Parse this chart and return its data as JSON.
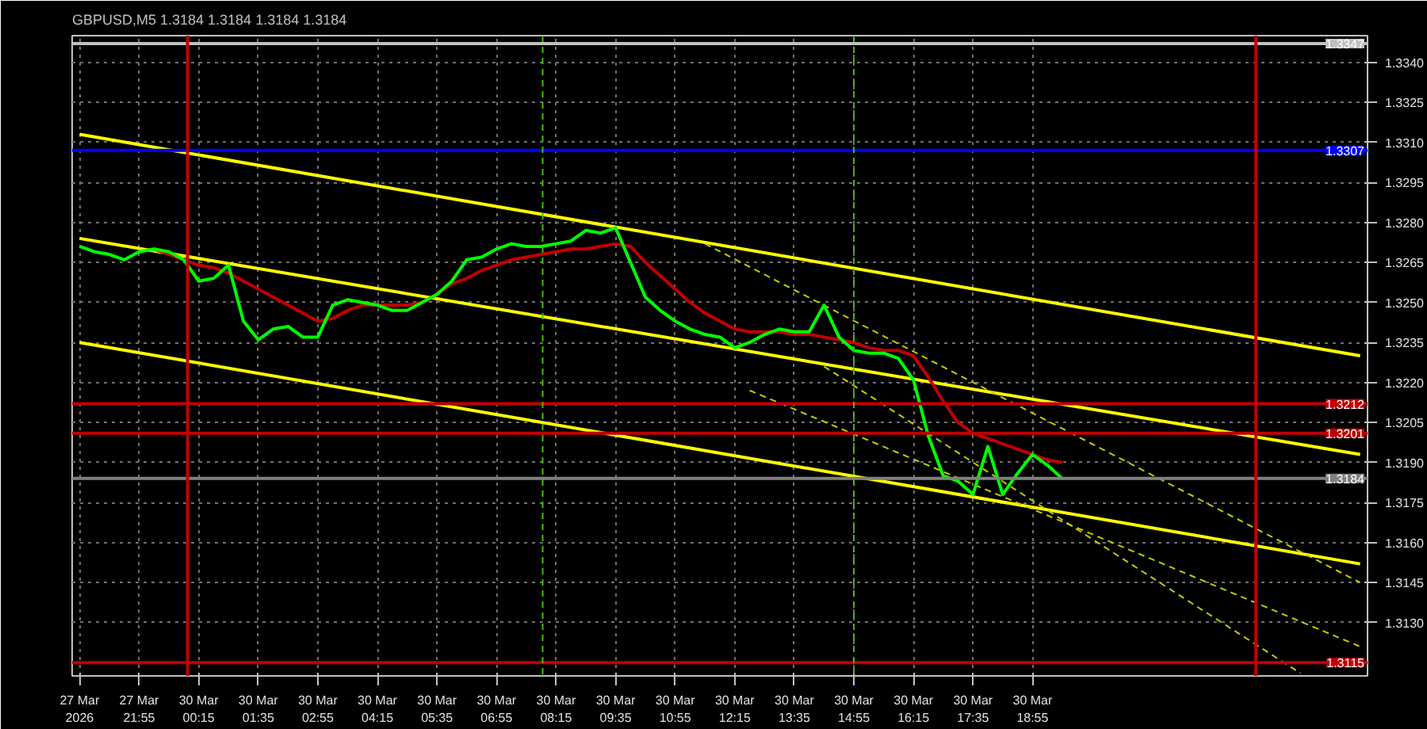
{
  "chart_data": {
    "type": "line",
    "title": "GBPUSD,M5  1.3184 1.3184 1.3184 1.3184",
    "ylim": [
      1.311,
      1.335
    ],
    "categories": [
      "27 Mar 2026",
      null,
      null,
      null,
      "27 Mar 21:55",
      null,
      null,
      null,
      "30 Mar 00:15",
      null,
      null,
      null,
      "30 Mar 01:35",
      null,
      null,
      null,
      "30 Mar 02:55",
      null,
      null,
      null,
      "30 Mar 04:15",
      null,
      null,
      null,
      "30 Mar 05:35",
      null,
      null,
      null,
      "30 Mar 06:55",
      null,
      null,
      null,
      "30 Mar 08:15",
      null,
      null,
      null,
      "30 Mar 09:35",
      null,
      null,
      null,
      "30 Mar 10:55",
      null,
      null,
      null,
      "30 Mar 12:15",
      null,
      null,
      null,
      "30 Mar 13:35",
      null,
      null,
      null,
      "30 Mar 14:55",
      null,
      null,
      null,
      "30 Mar 16:15",
      null,
      null,
      null,
      "30 Mar 17:35",
      null,
      null,
      null,
      "30 Mar 18:55",
      null,
      null,
      null,
      null,
      null,
      null,
      null,
      null,
      null,
      null,
      null,
      null,
      null,
      null,
      null,
      null,
      null,
      null,
      null,
      null,
      null,
      null
    ],
    "yticks": [
      {
        "value": 1.334,
        "label": "1.3340"
      },
      1.3325,
      {
        "value": 1.331,
        "label": "1.3310"
      },
      1.3295,
      {
        "value": 1.328,
        "label": "1.3280"
      },
      1.3265,
      {
        "value": 1.325,
        "label": "1.3250"
      },
      1.3235,
      {
        "value": 1.322,
        "label": "1.3220"
      },
      1.3205,
      {
        "value": 1.319,
        "label": "1.3190"
      },
      1.3175,
      {
        "value": 1.316,
        "label": "1.3160"
      },
      1.3145,
      {
        "value": 1.313,
        "label": "1.3130"
      }
    ],
    "grid": true,
    "series": [
      {
        "color": "#ffff00",
        "values": [
          1.3313,
          null,
          null,
          null,
          null,
          null,
          null,
          null,
          null,
          null,
          null,
          null,
          null,
          null,
          null,
          null,
          null,
          null,
          null,
          null,
          null,
          null,
          null,
          null,
          null,
          null,
          null,
          null,
          null,
          null,
          null,
          null,
          null,
          null,
          null,
          null,
          null,
          null,
          null,
          null,
          null,
          null,
          null,
          null,
          null,
          null,
          null,
          null,
          null,
          null,
          null,
          null,
          null,
          null,
          null,
          null,
          null,
          null,
          null,
          null,
          null,
          null,
          null,
          null,
          null,
          null,
          null,
          null,
          null,
          null,
          null,
          null,
          null,
          null,
          null,
          null,
          null,
          null,
          null,
          null,
          null,
          null,
          null,
          null,
          null,
          null,
          1.323
        ]
      },
      {
        "color": "#ffff00",
        "values": [
          1.3274,
          null,
          null,
          null,
          null,
          null,
          null,
          null,
          null,
          null,
          null,
          null,
          null,
          null,
          null,
          null,
          null,
          null,
          null,
          null,
          null,
          null,
          null,
          null,
          null,
          null,
          null,
          null,
          null,
          null,
          null,
          null,
          null,
          null,
          null,
          null,
          null,
          null,
          null,
          null,
          null,
          null,
          null,
          null,
          null,
          null,
          null,
          null,
          null,
          null,
          null,
          null,
          null,
          null,
          null,
          null,
          null,
          null,
          null,
          null,
          null,
          null,
          null,
          null,
          null,
          null,
          null,
          null,
          null,
          null,
          null,
          null,
          null,
          null,
          null,
          null,
          null,
          null,
          null,
          null,
          null,
          null,
          null,
          null,
          null,
          null,
          1.3193
        ]
      },
      {
        "color": "#ffff00",
        "values": [
          1.3235,
          null,
          null,
          null,
          null,
          null,
          null,
          null,
          null,
          null,
          null,
          null,
          null,
          null,
          null,
          null,
          null,
          null,
          null,
          null,
          null,
          null,
          null,
          null,
          null,
          null,
          null,
          null,
          null,
          null,
          null,
          null,
          null,
          null,
          null,
          null,
          null,
          null,
          null,
          null,
          null,
          null,
          null,
          null,
          null,
          null,
          null,
          null,
          null,
          null,
          null,
          null,
          null,
          null,
          null,
          null,
          null,
          null,
          null,
          null,
          null,
          null,
          null,
          null,
          null,
          null,
          null,
          null,
          null,
          null,
          null,
          null,
          null,
          null,
          null,
          null,
          null,
          null,
          null,
          null,
          null,
          null,
          null,
          null,
          null,
          null,
          1.3152
        ]
      },
      {
        "color": "#c8c800",
        "line_style": "dashed",
        "values": [
          null,
          null,
          null,
          null,
          null,
          null,
          null,
          null,
          null,
          null,
          null,
          null,
          null,
          null,
          null,
          null,
          null,
          null,
          null,
          null,
          null,
          null,
          null,
          null,
          null,
          null,
          null,
          null,
          null,
          null,
          null,
          null,
          null,
          null,
          null,
          null,
          null,
          null,
          null,
          null,
          null,
          null,
          1.3272,
          null,
          null,
          null,
          null,
          null,
          null,
          null,
          null,
          null,
          null,
          null,
          null,
          null,
          null,
          null,
          null,
          null,
          null,
          null,
          null,
          null,
          null,
          null,
          null,
          null,
          null,
          null,
          null,
          null,
          null,
          null,
          null,
          null,
          null,
          null,
          null,
          null,
          null,
          null,
          null,
          null,
          null,
          null,
          1.3145
        ]
      },
      {
        "color": "#c8c800",
        "line_style": "dashed",
        "values": [
          null,
          null,
          null,
          null,
          null,
          null,
          null,
          null,
          null,
          null,
          null,
          null,
          null,
          null,
          null,
          null,
          null,
          null,
          null,
          null,
          null,
          null,
          null,
          null,
          null,
          null,
          null,
          null,
          null,
          null,
          null,
          null,
          null,
          null,
          null,
          null,
          null,
          null,
          null,
          null,
          null,
          null,
          null,
          null,
          null,
          1.3217,
          null,
          null,
          null,
          null,
          null,
          null,
          null,
          null,
          null,
          null,
          null,
          null,
          null,
          null,
          null,
          null,
          null,
          null,
          null,
          null,
          null,
          null,
          null,
          null,
          null,
          null,
          null,
          null,
          null,
          null,
          null,
          null,
          null,
          null,
          null,
          null,
          null,
          null,
          null,
          null,
          1.3121
        ]
      },
      {
        "color": "#c8c800",
        "line_style": "dashed",
        "values": [
          null,
          null,
          null,
          null,
          null,
          null,
          null,
          null,
          null,
          null,
          null,
          null,
          null,
          null,
          null,
          null,
          null,
          null,
          null,
          null,
          null,
          null,
          null,
          null,
          null,
          null,
          null,
          null,
          null,
          null,
          null,
          null,
          null,
          null,
          null,
          null,
          null,
          null,
          null,
          null,
          null,
          null,
          null,
          null,
          null,
          null,
          null,
          null,
          null,
          null,
          1.3226,
          null,
          null,
          null,
          null,
          null,
          null,
          null,
          null,
          null,
          null,
          null,
          null,
          null,
          null,
          null,
          null,
          null,
          null,
          null,
          null,
          null,
          null,
          null,
          null,
          null,
          null,
          null,
          null,
          null,
          null,
          null,
          1.3111,
          null,
          null,
          null,
          null
        ]
      },
      {
        "color": "#c00000",
        "values": [
          null,
          null,
          null,
          null,
          null,
          1.327,
          1.3268,
          1.3266,
          1.3264,
          1.3263,
          1.3261,
          1.3258,
          1.3255,
          1.3252,
          1.3249,
          1.3246,
          1.3243,
          1.3244,
          1.3247,
          1.3249,
          1.3249,
          1.3249,
          1.3249,
          1.325,
          1.3253,
          1.3257,
          1.3259,
          1.3262,
          1.3264,
          1.3266,
          1.3267,
          1.3268,
          1.3269,
          1.327,
          1.327,
          1.3271,
          1.3272,
          1.3271,
          1.3265,
          1.326,
          1.3255,
          1.325,
          1.3246,
          1.3243,
          1.324,
          1.3239,
          1.3239,
          1.3239,
          1.3238,
          1.3238,
          1.3237,
          1.3236,
          1.3235,
          1.3233,
          1.3232,
          1.3232,
          1.323,
          1.3222,
          1.3213,
          1.3205,
          1.3201,
          1.3199,
          1.3197,
          1.3195,
          1.3193,
          1.3191,
          1.319,
          null,
          null,
          null,
          null,
          null,
          null,
          null,
          null,
          null,
          null,
          null,
          null,
          null,
          null,
          null,
          null,
          null,
          null,
          null,
          null
        ]
      },
      {
        "color": "#00ff00",
        "values": [
          1.3271,
          1.3269,
          1.3268,
          1.3266,
          1.3269,
          1.327,
          1.3269,
          1.3266,
          1.3258,
          1.3259,
          1.3264,
          1.3243,
          1.3236,
          1.324,
          1.3241,
          1.3237,
          1.3237,
          1.3249,
          1.3251,
          1.325,
          1.3249,
          1.3247,
          1.3247,
          1.325,
          1.3253,
          1.3258,
          1.3266,
          1.3267,
          1.327,
          1.3272,
          1.3271,
          1.3271,
          1.3272,
          1.3273,
          1.3277,
          1.3276,
          1.3278,
          1.3265,
          1.3252,
          1.3247,
          1.3243,
          1.324,
          1.3238,
          1.3237,
          1.3233,
          1.3235,
          1.3238,
          1.324,
          1.3239,
          1.3239,
          1.3249,
          1.3237,
          1.3232,
          1.3231,
          1.3231,
          1.3229,
          1.3221,
          1.32,
          1.3185,
          1.3183,
          1.3178,
          1.3196,
          1.3178,
          1.3186,
          1.3193,
          1.3189,
          1.3184,
          null,
          null,
          null,
          null,
          null,
          null,
          null,
          null,
          null,
          null,
          null,
          null,
          null,
          null,
          null,
          null,
          null,
          null,
          null,
          null
        ]
      }
    ],
    "ref_lines": [
      {
        "axis": "y",
        "value": 1.3347,
        "label": "1.3347",
        "color": "#c0c0c0"
      },
      {
        "axis": "y",
        "value": 1.3307,
        "label": "1.3307",
        "color": "#0000ff"
      },
      {
        "axis": "y",
        "value": 1.3212,
        "label": "1.3212",
        "color": "#c00000"
      },
      {
        "axis": "y",
        "value": 1.3201,
        "label": "1.3201",
        "color": "#c00000"
      },
      {
        "axis": "y",
        "value": 1.3184,
        "label": "1.3184",
        "color": "#808080"
      },
      {
        "axis": "y",
        "value": 1.3115,
        "label": "1.3115",
        "color": "#c00000"
      }
    ]
  }
}
